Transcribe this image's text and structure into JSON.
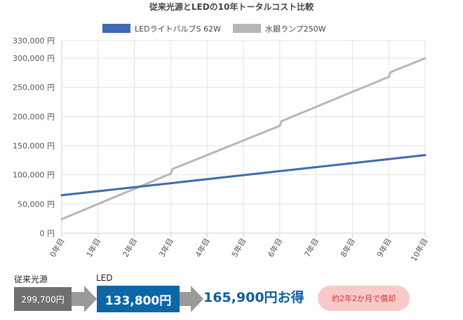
{
  "chart_data": {
    "type": "line",
    "title": "従来光源とLEDの10年トータルコスト比較",
    "categories": [
      "0年目",
      "1年目",
      "2年目",
      "3年目",
      "4年目",
      "5年目",
      "6年目",
      "7年目",
      "8年目",
      "9年目",
      "10年目"
    ],
    "y_tick_labels": [
      "0 円",
      "50,000 円",
      "100,000 円",
      "150,000 円",
      "200,000 円",
      "250,000 円",
      "300,000 円",
      "330,000 円"
    ],
    "y_ticks": [
      0,
      50000,
      100000,
      150000,
      200000,
      250000,
      300000,
      330000
    ],
    "ylim": [
      0,
      330000
    ],
    "grid": true,
    "legend_position": "top",
    "series": [
      {
        "name": "LEDライトバルブS 62W",
        "color": "#3d69b5",
        "x": [
          0,
          10
        ],
        "values": [
          65000,
          133800
        ]
      },
      {
        "name": "水銀ランプ250W",
        "color": "#b7b7b7",
        "x": [
          0,
          3,
          3.05,
          6,
          6.05,
          9,
          9.05,
          10
        ],
        "values": [
          24000,
          102000,
          110000,
          184000,
          192000,
          268000,
          276000,
          299700
        ]
      }
    ]
  },
  "summary": {
    "old_label": "従来光源",
    "old_value": "299,700円",
    "led_label": "LED",
    "led_value": "133,800円",
    "saving_text": "165,900円お得",
    "payback_text": "約2年2か月で償却"
  },
  "colors": {
    "old_box": "#6f6f6f",
    "led_box": "#0d67a6",
    "arrow": "#9a9a9a",
    "saving_text": "#0d5ea3",
    "payback_bg": "#f7c9c9",
    "payback_text": "#d23434"
  }
}
